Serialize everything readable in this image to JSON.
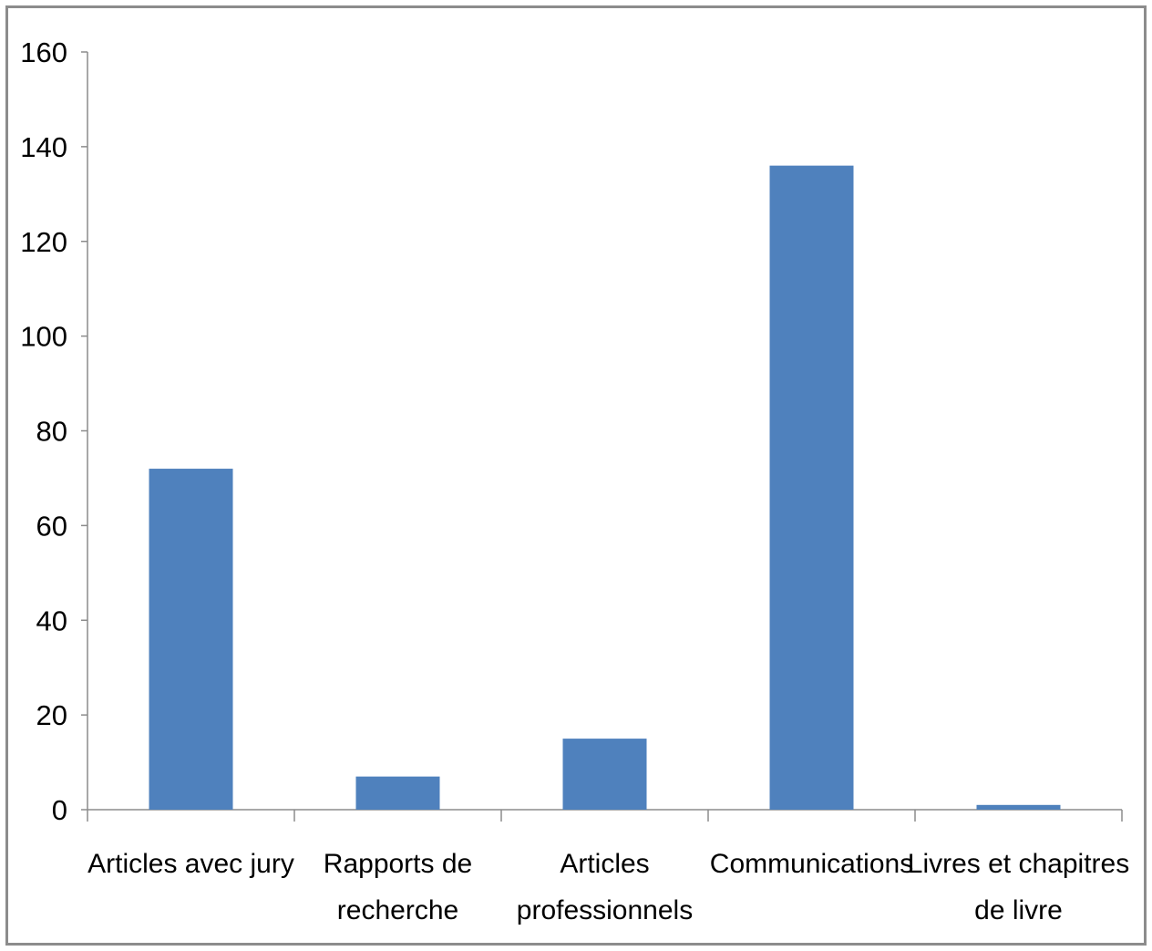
{
  "chart_data": {
    "type": "bar",
    "title": "",
    "xlabel": "",
    "ylabel": "",
    "categories": [
      [
        "Articles avec jury"
      ],
      [
        "Rapports de",
        "recherche"
      ],
      [
        "Articles",
        "professionnels"
      ],
      [
        "Communications"
      ],
      [
        "Livres et chapitres",
        "de livre"
      ]
    ],
    "values": [
      72,
      7,
      15,
      136,
      1
    ],
    "ylim": [
      0,
      160
    ],
    "yticks": [
      0,
      20,
      40,
      60,
      80,
      100,
      120,
      140,
      160
    ],
    "grid": false,
    "legend": "none",
    "bar_color": "#4f81bd",
    "axis_color": "#8c8c8c"
  }
}
